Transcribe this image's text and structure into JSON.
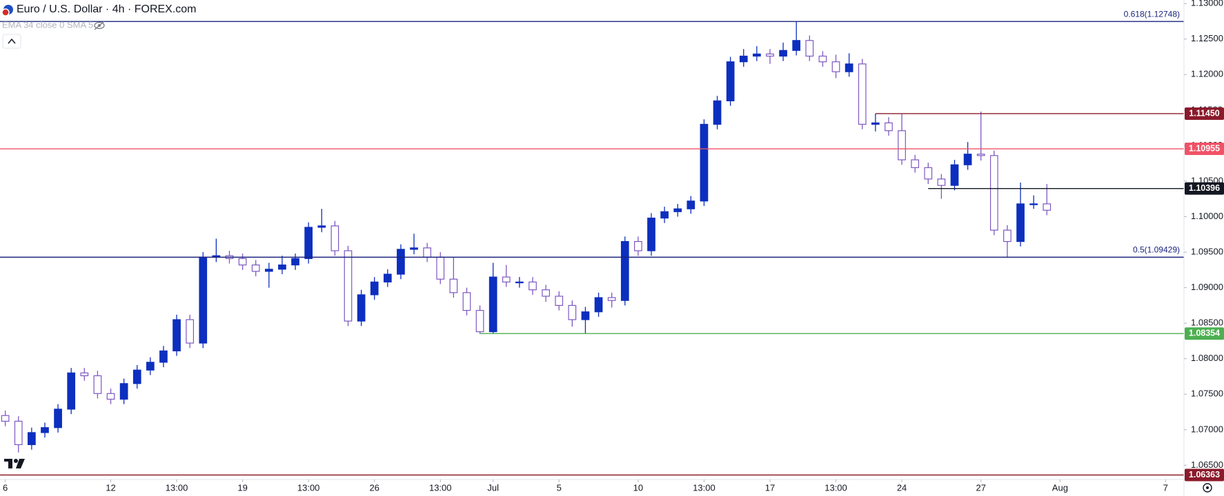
{
  "chart_data": {
    "type": "candlestick",
    "title": "Euro / U.S. Dollar · 4h · FOREX.com",
    "indicator": "EMA 34 close 0 SMA 5",
    "up_color": "#0d2fbf",
    "down_color": "#7e57c2",
    "x": [
      0,
      0.5,
      1,
      1.5,
      2,
      2.5,
      3,
      3.5,
      4,
      4.5,
      5,
      5.5,
      6,
      6.5,
      7,
      7.5,
      8,
      8.5,
      9,
      9.5,
      10,
      10.5,
      11,
      11.5,
      12,
      12.5,
      13,
      13.5,
      14,
      14.5,
      15,
      15.5,
      16,
      16.5,
      17,
      17.5,
      18,
      18.5,
      19,
      19.5,
      20,
      20.5,
      21,
      21.5,
      22,
      22.5,
      23,
      23.5,
      24,
      24.5,
      25,
      25.5,
      26,
      26.5,
      27,
      27.5,
      28,
      28.5,
      29,
      29.5,
      30,
      30.5,
      31,
      31.5,
      32,
      32.5,
      33,
      33.5,
      34,
      34.5,
      35,
      35.5,
      36,
      36.5,
      37,
      37.5,
      38,
      38.5,
      39,
      39.5
    ],
    "open": [
      1.072,
      1.0712,
      1.0679,
      1.0696,
      1.0703,
      1.0729,
      1.078,
      1.0776,
      1.0751,
      1.0743,
      1.0765,
      1.0784,
      1.0795,
      1.0811,
      1.0855,
      1.0822,
      1.0943,
      1.0945,
      1.0941,
      1.0932,
      1.0923,
      1.0926,
      1.0932,
      1.0941,
      1.0985,
      1.0987,
      1.0952,
      1.0853,
      1.089,
      1.0908,
      1.0919,
      1.0954,
      1.0956,
      1.0943,
      1.0912,
      1.0893,
      1.0868,
      1.0838,
      1.0915,
      1.0908,
      1.0908,
      1.0897,
      1.0888,
      1.0875,
      1.0855,
      1.0866,
      1.0886,
      1.0882,
      1.0965,
      1.0952,
      1.0998,
      1.1007,
      1.1011,
      1.1022,
      1.113,
      1.1163,
      1.1218,
      1.1226,
      1.1229,
      1.1226,
      1.1234,
      1.1248,
      1.1226,
      1.1218,
      1.1204,
      1.1215,
      1.113,
      1.1132,
      1.1121,
      1.108,
      1.1069,
      1.1053,
      1.1044,
      1.1073,
      1.1088,
      1.1086,
      1.0981,
      1.0965,
      1.1018,
      1.1018
    ],
    "high": [
      1.0727,
      1.0719,
      1.0703,
      1.071,
      1.0736,
      1.0787,
      1.0787,
      1.0783,
      1.0758,
      1.0772,
      1.0791,
      1.0802,
      1.0818,
      1.0862,
      1.0862,
      1.095,
      1.0969,
      1.0952,
      1.0948,
      1.0939,
      1.0935,
      1.0945,
      1.0948,
      1.0992,
      1.1011,
      1.0994,
      1.0959,
      1.0897,
      1.0915,
      1.0926,
      1.0961,
      1.0976,
      1.0963,
      1.095,
      1.0943,
      1.09,
      1.0875,
      1.0935,
      1.0932,
      1.0915,
      1.0915,
      1.0904,
      1.0895,
      1.0882,
      1.0873,
      1.0893,
      1.0893,
      1.0972,
      1.0972,
      1.1005,
      1.1014,
      1.1018,
      1.1029,
      1.1137,
      1.117,
      1.1225,
      1.1236,
      1.124,
      1.1236,
      1.1245,
      1.1275,
      1.1255,
      1.1233,
      1.1228,
      1.123,
      1.1222,
      1.1145,
      1.114,
      1.1145,
      1.1087,
      1.1076,
      1.106,
      1.108,
      1.1105,
      1.1148,
      1.1093,
      1.0988,
      1.1048,
      1.103,
      1.1046
    ],
    "low": [
      1.0705,
      1.0668,
      1.0672,
      1.0689,
      1.0696,
      1.0722,
      1.0769,
      1.0744,
      1.0736,
      1.0736,
      1.0758,
      1.0777,
      1.0788,
      1.0804,
      1.0815,
      1.0815,
      1.0936,
      1.0934,
      1.0925,
      1.0916,
      1.09,
      1.0919,
      1.0925,
      1.0934,
      1.0978,
      1.0945,
      1.0846,
      1.0846,
      1.0883,
      1.0901,
      1.0912,
      1.0947,
      1.0936,
      1.0905,
      1.0886,
      1.0861,
      1.0835,
      1.0836,
      1.0901,
      1.09,
      1.089,
      1.088,
      1.0868,
      1.0845,
      1.0835,
      1.0859,
      1.0872,
      1.0875,
      1.0945,
      1.0945,
      1.0991,
      1.1,
      1.1004,
      1.1015,
      1.1123,
      1.1156,
      1.1211,
      1.1219,
      1.1215,
      1.1219,
      1.1227,
      1.1219,
      1.1211,
      1.1195,
      1.1197,
      1.1123,
      1.112,
      1.1114,
      1.1073,
      1.1062,
      1.1046,
      1.1025,
      1.1037,
      1.1066,
      1.1079,
      1.0974,
      1.0943,
      1.0958,
      1.1011,
      1.1002
    ],
    "close": [
      1.0712,
      1.0679,
      1.0696,
      1.0703,
      1.0729,
      1.078,
      1.0776,
      1.0751,
      1.0743,
      1.0765,
      1.0784,
      1.0795,
      1.0811,
      1.0855,
      1.0822,
      1.0943,
      1.0945,
      1.0941,
      1.0932,
      1.0923,
      1.0926,
      1.0932,
      1.0941,
      1.0985,
      1.0987,
      1.0952,
      1.0853,
      1.089,
      1.0908,
      1.0919,
      1.0954,
      1.0956,
      1.0943,
      1.0912,
      1.0893,
      1.0868,
      1.0838,
      1.0915,
      1.0908,
      1.0908,
      1.0897,
      1.0888,
      1.0875,
      1.0855,
      1.0866,
      1.0886,
      1.0882,
      1.0965,
      1.0952,
      1.0998,
      1.1007,
      1.1011,
      1.1022,
      1.113,
      1.1163,
      1.1218,
      1.1226,
      1.1229,
      1.1226,
      1.1234,
      1.1248,
      1.1226,
      1.1218,
      1.1204,
      1.1215,
      1.113,
      1.1132,
      1.1121,
      1.108,
      1.1069,
      1.1053,
      1.1044,
      1.1073,
      1.1088,
      1.1086,
      1.0981,
      1.0965,
      1.1018,
      1.1018,
      1.1009
    ],
    "xlim": [
      -0.2,
      44.7
    ],
    "ylim": [
      1.063,
      1.1305
    ],
    "xticks": [
      {
        "value": 0,
        "label": "6"
      },
      {
        "value": 4,
        "label": "12"
      },
      {
        "value": 6.5,
        "label": "13:00"
      },
      {
        "value": 9,
        "label": "19"
      },
      {
        "value": 11.5,
        "label": "13:00"
      },
      {
        "value": 14,
        "label": "26"
      },
      {
        "value": 16.5,
        "label": "13:00"
      },
      {
        "value": 18.5,
        "label": "Jul"
      },
      {
        "value": 21,
        "label": "5"
      },
      {
        "value": 24,
        "label": "10"
      },
      {
        "value": 26.5,
        "label": "13:00"
      },
      {
        "value": 29,
        "label": "17"
      },
      {
        "value": 31.5,
        "label": "13:00"
      },
      {
        "value": 34,
        "label": "24"
      },
      {
        "value": 37,
        "label": "27"
      },
      {
        "value": 40,
        "label": "Aug"
      },
      {
        "value": 44,
        "label": "7"
      }
    ],
    "yticks": [
      {
        "value": 1.065,
        "label": "1.06500"
      },
      {
        "value": 1.07,
        "label": "1.07000"
      },
      {
        "value": 1.075,
        "label": "1.07500"
      },
      {
        "value": 1.08,
        "label": "1.08000"
      },
      {
        "value": 1.085,
        "label": "1.08500"
      },
      {
        "value": 1.09,
        "label": "1.09000"
      },
      {
        "value": 1.095,
        "label": "1.09500"
      },
      {
        "value": 1.1,
        "label": "1.10000"
      },
      {
        "value": 1.105,
        "label": "1.10500"
      },
      {
        "value": 1.11,
        "label": "1.11000"
      },
      {
        "value": 1.115,
        "label": "1.11500"
      },
      {
        "value": 1.12,
        "label": "1.12000"
      },
      {
        "value": 1.125,
        "label": "1.12500"
      },
      {
        "value": 1.13,
        "label": "1.13000"
      }
    ],
    "levels": [
      {
        "value": 1.12748,
        "text": "0.618(1.12748)",
        "color": "#1a237e"
      },
      {
        "value": 1.1145,
        "label": "1.11450",
        "color": "#8b1a2b",
        "from": 33
      },
      {
        "value": 1.10955,
        "label": "1.10955",
        "color": "#f05266"
      },
      {
        "value": 1.10396,
        "label": "1.10396",
        "color": "#131722",
        "from": 35
      },
      {
        "value": 1.09429,
        "text": "0.5(1.09429)",
        "color": "#1a237e"
      },
      {
        "value": 1.08354,
        "label": "1.08354",
        "color": "#4caf50",
        "from": 18
      },
      {
        "value": 1.06363,
        "label": "1.06363",
        "color": "#8b1a2b"
      }
    ]
  }
}
